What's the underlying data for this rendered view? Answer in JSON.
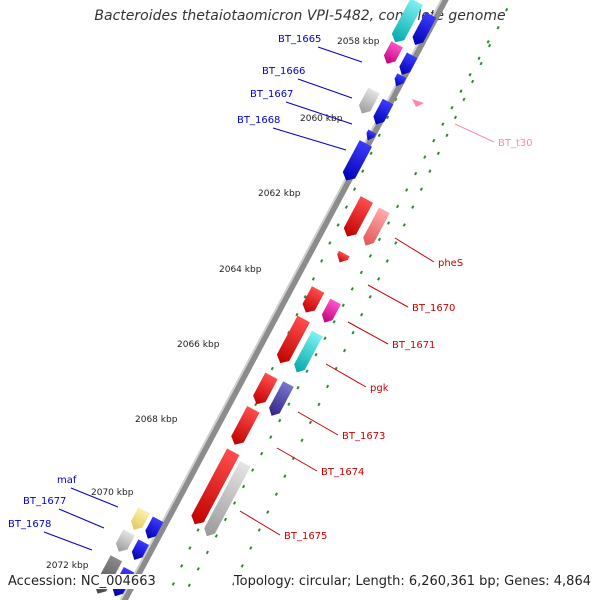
{
  "title": "Bacteroides thetaiotaomicron VPI-5482, complete genome",
  "accession": "Accession: NC_004663",
  "topology": "Topology: circular; Length: 6,260,361 bp; Genes: 4,864",
  "colors": {
    "backbone": "#8c8c8c",
    "tick": "#2e8b2e",
    "forward_label": "#0000cc",
    "reverse_label": "#cc0000",
    "rna_label": "#ff88aa"
  },
  "ticks": [
    "2058 kbp",
    "2060 kbp",
    "2062 kbp",
    "2064 kbp",
    "2066 kbp",
    "2068 kbp",
    "2070 kbp",
    "2072 kbp"
  ],
  "forward_labels": [
    "BT_1665",
    "BT_1666",
    "BT_1667",
    "BT_1668",
    "maf",
    "BT_1677",
    "BT_1678"
  ],
  "reverse_labels": [
    "BT_t30",
    "pheS",
    "BT_1670",
    "BT_1671",
    "pgk",
    "BT_1673",
    "BT_1674",
    "BT_1675"
  ]
}
